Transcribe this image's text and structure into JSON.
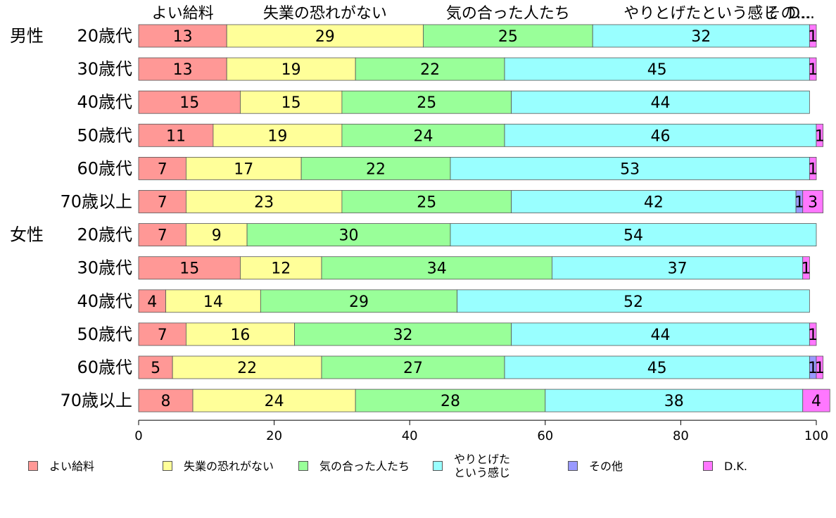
{
  "chart_data": {
    "type": "bar",
    "orientation": "horizontal",
    "stacked": true,
    "groups": [
      "男性",
      "女性"
    ],
    "categories": [
      "20歳代",
      "30歳代",
      "40歳代",
      "50歳代",
      "60歳代",
      "70歳以上",
      "20歳代",
      "30歳代",
      "40歳代",
      "50歳代",
      "60歳代",
      "70歳以上"
    ],
    "category_group": [
      "男性",
      "",
      "",
      "",
      "",
      "",
      "女性",
      "",
      "",
      "",
      "",
      ""
    ],
    "series": [
      {
        "name": "よい給料",
        "top_label": "よい給料",
        "color": "#ff9896",
        "values": [
          13,
          13,
          15,
          11,
          7,
          7,
          7,
          15,
          4,
          7,
          5,
          8
        ]
      },
      {
        "name": "失業の恐れがない",
        "top_label": "失業の恐れがない",
        "color": "#ffff99",
        "values": [
          29,
          19,
          15,
          19,
          17,
          23,
          9,
          12,
          14,
          16,
          22,
          24
        ]
      },
      {
        "name": "気の合った人たち",
        "top_label": "気の合った人たち",
        "color": "#99ff99",
        "values": [
          25,
          22,
          25,
          24,
          22,
          25,
          30,
          34,
          29,
          32,
          27,
          28
        ]
      },
      {
        "name": "やりとげたという感じ",
        "legend_label": "やりとげた\nという感じ",
        "top_label": "やりとげたという感じ",
        "color": "#99ffff",
        "values": [
          32,
          45,
          44,
          46,
          53,
          42,
          54,
          37,
          52,
          44,
          45,
          38
        ]
      },
      {
        "name": "その他",
        "top_label": "その...",
        "color": "#9999ff",
        "values": [
          0,
          0,
          0,
          0,
          0,
          1,
          0,
          0,
          0,
          0,
          1,
          0
        ]
      },
      {
        "name": "D.K.",
        "top_label": "D...",
        "color": "#ff77ff",
        "values": [
          1,
          1,
          0,
          1,
          1,
          3,
          0,
          1,
          0,
          1,
          1,
          4
        ]
      }
    ],
    "xlim": [
      0,
      100
    ],
    "xticks": [
      0,
      20,
      40,
      60,
      80,
      100
    ],
    "legend_position": "bottom",
    "grid": false
  }
}
